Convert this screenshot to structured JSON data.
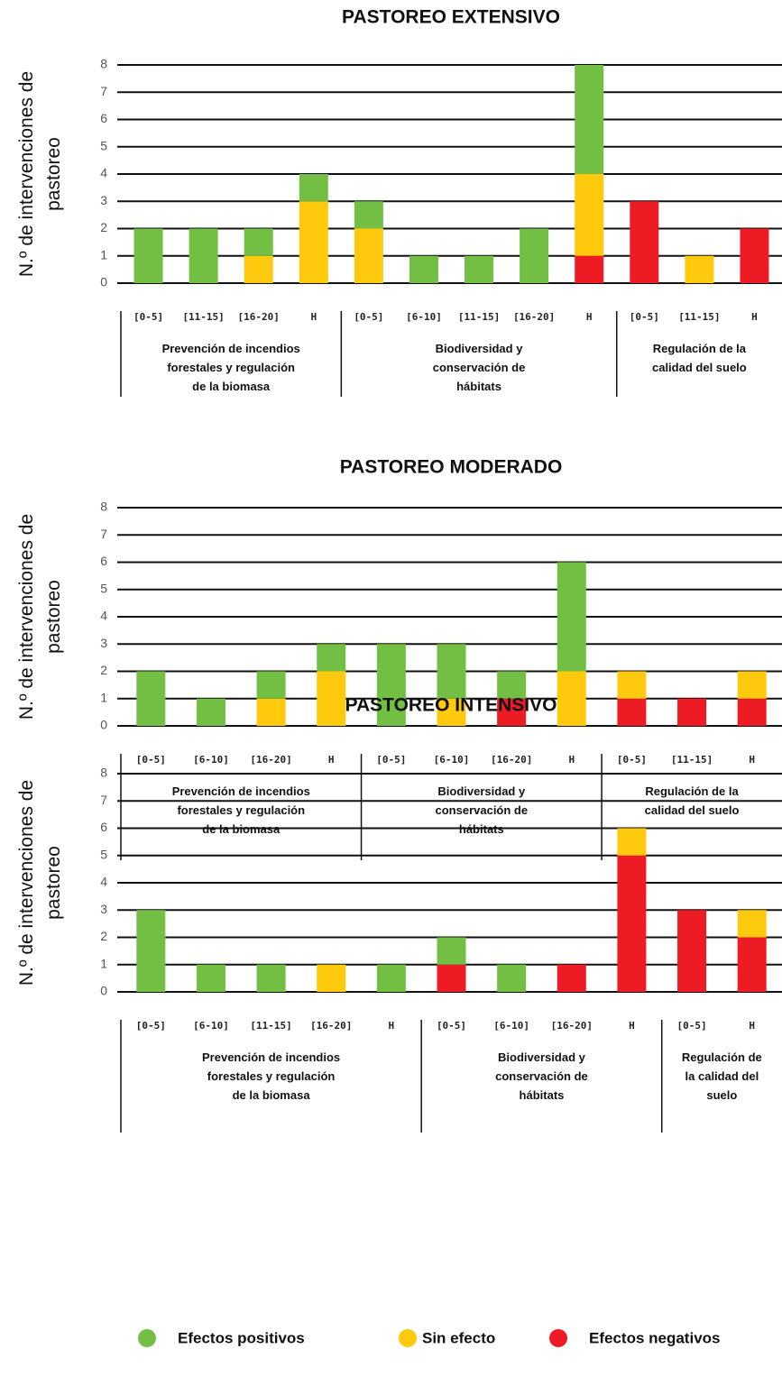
{
  "chart_data": [
    {
      "type": "stacked-bar",
      "title": "PASTOREO EXTENSIVO",
      "y_label": "N.º de intervenciones de pastoreo",
      "ylim": [
        0,
        8
      ],
      "yticks": [
        0,
        1,
        2,
        3,
        4,
        5,
        6,
        7,
        8
      ],
      "grid": true,
      "groups": [
        {
          "label": "Prevención de incendios forestales y regulación de la biomasa",
          "categories": [
            "[0-5]",
            "[11-15]",
            "[16-20]",
            "H"
          ]
        },
        {
          "label": "Biodiversidad y conservación de hábitats",
          "categories": [
            "[0-5]",
            "[6-10]",
            "[11-15]",
            "[16-20]",
            "H"
          ]
        },
        {
          "label": "Regulación de la calidad del suelo",
          "categories": [
            "[0-5]",
            "[11-15]",
            "H"
          ]
        }
      ],
      "series": [
        {
          "name": "Efectos positivos",
          "color": "#72bf44",
          "values": [
            2,
            2,
            1,
            1,
            1,
            1,
            1,
            2,
            4,
            0,
            0,
            0
          ]
        },
        {
          "name": "Sin efecto",
          "color": "#ffc90e",
          "values": [
            0,
            0,
            1,
            3,
            2,
            0,
            0,
            0,
            3,
            0,
            1,
            0
          ]
        },
        {
          "name": "Efectos negativos",
          "color": "#ed1c24",
          "values": [
            0,
            0,
            0,
            0,
            0,
            0,
            0,
            0,
            1,
            3,
            0,
            2
          ]
        }
      ]
    },
    {
      "type": "stacked-bar",
      "title": "PASTOREO MODERADO",
      "y_label": "N.º de intervenciones de pastoreo",
      "ylim": [
        0,
        8
      ],
      "yticks": [
        0,
        1,
        2,
        3,
        4,
        5,
        6,
        7,
        8
      ],
      "grid": true,
      "groups": [
        {
          "label": "Prevención de incendios forestales y regulación de la biomasa",
          "categories": [
            "[0-5]",
            "[6-10]",
            "[16-20]",
            "H"
          ]
        },
        {
          "label": "Biodiversidad y conservación de hábitats",
          "categories": [
            "[0-5]",
            "[6-10]",
            "[16-20]",
            "H"
          ]
        },
        {
          "label": "Regulación de la calidad del suelo",
          "categories": [
            "[0-5]",
            "[11-15]",
            "H"
          ]
        }
      ],
      "series": [
        {
          "name": "Efectos positivos",
          "color": "#72bf44",
          "values": [
            2,
            1,
            1,
            1,
            3,
            2,
            1,
            4,
            0,
            0,
            0
          ]
        },
        {
          "name": "Sin efecto",
          "color": "#ffc90e",
          "values": [
            0,
            0,
            1,
            2,
            0,
            1,
            0,
            2,
            1,
            0,
            1
          ]
        },
        {
          "name": "Efectos negativos",
          "color": "#ed1c24",
          "values": [
            0,
            0,
            0,
            0,
            0,
            0,
            1,
            0,
            1,
            1,
            1
          ]
        }
      ]
    },
    {
      "type": "stacked-bar",
      "title": "PASTOREO INTENSIVO",
      "y_label": "N.º de intervenciones de pastoreo",
      "ylim": [
        0,
        8
      ],
      "yticks": [
        0,
        1,
        2,
        3,
        4,
        5,
        6,
        7,
        8
      ],
      "grid": true,
      "groups": [
        {
          "label": "Prevención de incendios forestales y regulación de la biomasa",
          "categories": [
            "[0-5]",
            "[6-10]",
            "[11-15]",
            "[16-20]",
            "H"
          ]
        },
        {
          "label": "Biodiversidad y conservación de hábitats",
          "categories": [
            "[0-5]",
            "[6-10]",
            "[16-20]",
            "H"
          ]
        },
        {
          "label": "Regulación de la calidad del suelo",
          "categories": [
            "[0-5]",
            "H"
          ]
        }
      ],
      "series": [
        {
          "name": "Efectos positivos",
          "color": "#72bf44",
          "values": [
            3,
            1,
            1,
            0,
            1,
            1,
            1,
            0,
            0,
            0,
            0
          ]
        },
        {
          "name": "Sin efecto",
          "color": "#ffc90e",
          "values": [
            0,
            0,
            0,
            1,
            0,
            0,
            0,
            0,
            1,
            0,
            1
          ]
        },
        {
          "name": "Efectos negativos",
          "color": "#ed1c24",
          "values": [
            0,
            0,
            0,
            0,
            0,
            1,
            0,
            1,
            5,
            3,
            2
          ]
        }
      ]
    }
  ]
}
